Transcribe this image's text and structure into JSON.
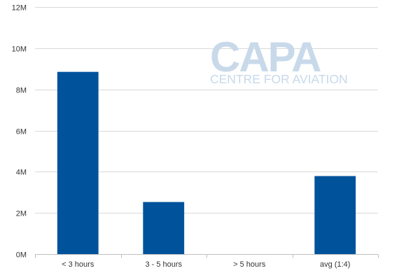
{
  "watermark": {
    "brand": "CAPA",
    "tagline": "CENTRE FOR AVIATION"
  },
  "chart_data": {
    "type": "bar",
    "categories": [
      "< 3 hours",
      "3 - 5 hours",
      "> 5 hours",
      "avg (1:4)"
    ],
    "values": [
      8850000,
      2530000,
      0,
      3790000
    ],
    "y_ticks": [
      0,
      2000000,
      4000000,
      6000000,
      8000000,
      10000000,
      12000000
    ],
    "y_tick_labels": [
      "0M",
      "2M",
      "4M",
      "6M",
      "8M",
      "10M",
      "12M"
    ],
    "ylim": [
      0,
      12000000
    ],
    "grid": true,
    "legend": "none",
    "colors": {
      "bar": "#00529b",
      "grid": "#d9d9d9",
      "axis": "#bfbfbf",
      "text": "#333333"
    }
  }
}
